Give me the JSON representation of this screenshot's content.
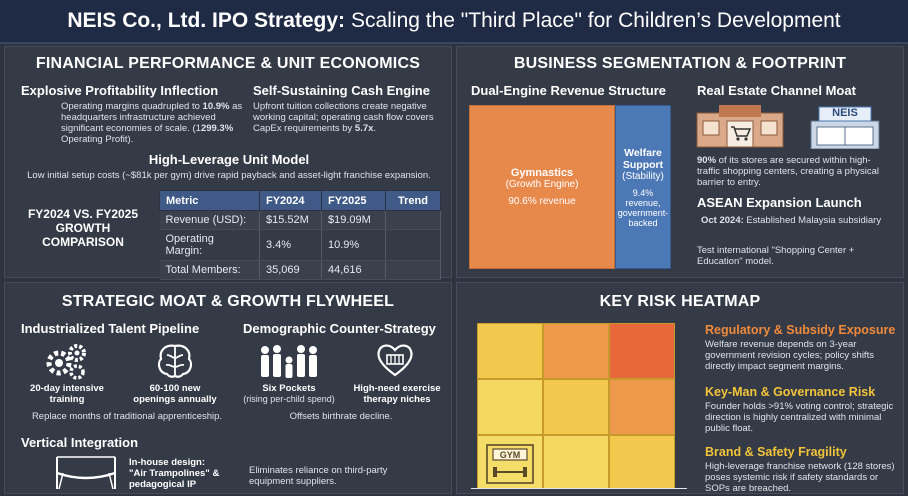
{
  "header": {
    "title_bold": "NEIS Co., Ltd. IPO Strategy:",
    "title_rest": "Scaling the \"Third Place\" for Children’s Development"
  },
  "financial": {
    "panel_title": "FINANCIAL PERFORMANCE & UNIT ECONOMICS",
    "profit_title": "Explosive Profitability Inflection",
    "profit_text_1": "Operating margins quadrupled to",
    "profit_value": "10.9%",
    "profit_text_2": "as headquarters infrastructure achieved significant economies of scale. (1",
    "profit_growth": "299.3%",
    "profit_text_3": "Operating Profit).",
    "cash_title": "Self-Sustaining Cash Engine",
    "cash_text_1": "Upfront tuition collections create negative working capital; operating cash flow covers CapEx requirements by",
    "cash_value": "5.7x",
    "cash_text_2": ".",
    "unit_title": "High-Leverage Unit Model",
    "unit_text": "Low initial setup costs (~$81k per gym) drive rapid payback and asset-light franchise expansion.",
    "comparison_label": "FY2024 VS. FY2025 GROWTH COMPARISON",
    "table": {
      "headers": [
        "Metric",
        "FY2024",
        "FY2025",
        "Trend"
      ],
      "rows": [
        [
          "Revenue (USD):",
          "$15.52M",
          "$19.09M",
          ""
        ],
        [
          "Operating Margin:",
          "3.4%",
          "10.9%",
          ""
        ],
        [
          "Total Members:",
          "35,069",
          "44,616",
          ""
        ]
      ]
    }
  },
  "business": {
    "panel_title": "BUSINESS SEGMENTATION & FOOTPRINT",
    "revenue_title": "Dual-Engine Revenue Structure",
    "gym_name": "Gymnastics",
    "gym_sub": "(Growth Engine)",
    "gym_share": "90.6% revenue",
    "gym_share_value": 90.6,
    "welfare_name": "Welfare Support",
    "welfare_sub": "(Stability)",
    "welfare_share": "9.4% revenue, government-backed",
    "welfare_share_value": 9.4,
    "moat_title": "Real Estate Channel Moat",
    "store_sign": "NEIS",
    "moat_value": "90%",
    "moat_text": "of its stores are secured within high-traffic shopping centers, creating a physical barrier to entry.",
    "asean_title": "ASEAN Expansion Launch",
    "asean_date": "Oct 2024:",
    "asean_text": "Established Malaysia subsidiary",
    "asean_note": "Test international \"Shopping Center + Education\" model."
  },
  "strategic": {
    "panel_title": "STRATEGIC MOAT & GROWTH FLYWHEEL",
    "talent_title": "Industrialized Talent Pipeline",
    "training_label": "20-day intensive training",
    "openings_label": "60-100 new openings annually",
    "talent_text": "Replace months of traditional apprenticeship.",
    "demo_title": "Demographic Counter-Strategy",
    "pockets_label": "Six Pockets",
    "pockets_sub": "(rising per-child spend)",
    "therapy_label": "High-need exercise therapy niches",
    "demo_text": "Offsets birthrate decline.",
    "vertical_title": "Vertical Integration",
    "inhouse_label": "In-house design: \"Air Trampolines\" & pedagogical IP",
    "vertical_text": "Eliminates reliance on third-party equipment suppliers."
  },
  "risk": {
    "panel_title": "KEY RISK HEATMAP",
    "gym_sign": "GYM",
    "heat_colors": [
      [
        "#f2c94c",
        "#ee9a4d",
        "#e8683a"
      ],
      [
        "#f4d860",
        "#f2c94c",
        "#ee9a4d"
      ],
      [
        "#f5dd6a",
        "#f4d860",
        "#f2c94c"
      ]
    ],
    "items": [
      {
        "title": "Regulatory & Subsidy Exposure",
        "text": "Welfare revenue depends on 3-year government revision cycles; policy shifts directly impact segment margins."
      },
      {
        "title": "Key-Man & Governance Risk",
        "text": "Founder holds >91% voting control; strategic direction is highly centralized with minimal public float."
      },
      {
        "title": "Brand & Safety Fragility",
        "text": "High-leverage franchise network (128 stores) poses systemic risk if safety standards or SOPs are breached."
      }
    ]
  }
}
